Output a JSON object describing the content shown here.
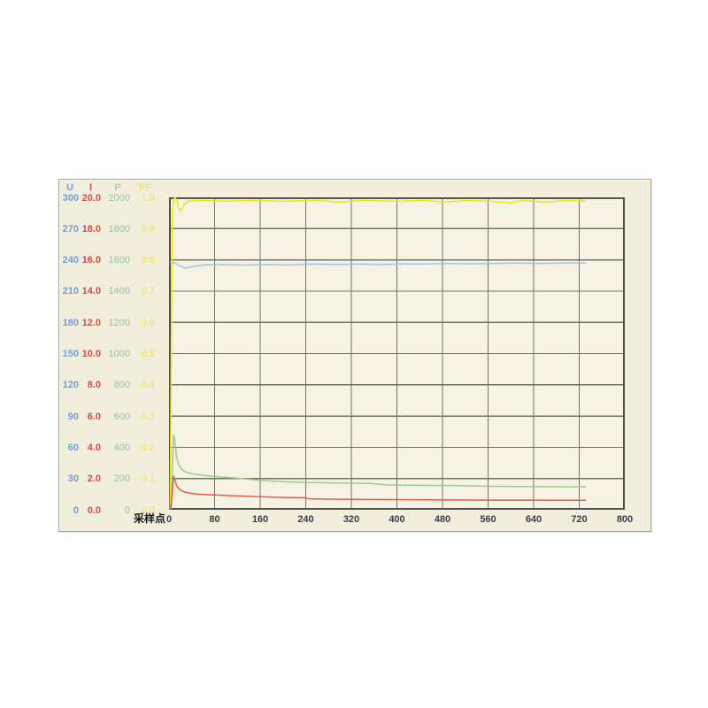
{
  "panel": {
    "name": "trend-chart-panel"
  },
  "colors": {
    "panel_bg": "#F1EEDE",
    "plot_bg": "#F6F3E4",
    "grid_line": "#73725F",
    "plot_border": "#53524A",
    "x_label_color": "#3B3B46",
    "u_color": "#6FA0D8",
    "i_color": "#D84B3F",
    "p_color": "#8FC897",
    "pf_color": "#EDE34A",
    "u_line": "#9CC5EB",
    "i_line": "#E25B50",
    "p_line": "#9CCB90",
    "pf_line": "#EDE70C"
  },
  "y_axes": {
    "columns": [
      {
        "id": "U",
        "header": "U",
        "color": "#6FA0D8",
        "bold": true,
        "ticks": [
          "300",
          "270",
          "240",
          "210",
          "180",
          "150",
          "120",
          "90",
          "60",
          "30",
          "0"
        ]
      },
      {
        "id": "I",
        "header": "I",
        "color": "#D84B3F",
        "bold": true,
        "ticks": [
          "20.0",
          "18.0",
          "16.0",
          "14.0",
          "12.0",
          "10.0",
          "8.0",
          "6.0",
          "4.0",
          "2.0",
          "0.0"
        ]
      },
      {
        "id": "P",
        "header": "P",
        "color": "#8FC897",
        "bold": false,
        "ticks": [
          "2000",
          "1800",
          "1600",
          "1400",
          "1200",
          "1000",
          "800",
          "600",
          "400",
          "200",
          "0"
        ]
      },
      {
        "id": "PF",
        "header": "PF",
        "color": "#EDE34A",
        "bold": false,
        "ticks": [
          "1.0",
          "0.9",
          "0.8",
          "0.7",
          "0.6",
          "0.5",
          "0.4",
          "0.3",
          "0.2",
          "0.1",
          "0.0"
        ]
      }
    ]
  },
  "x_axis": {
    "label": "采样点",
    "ticks": [
      "0",
      "80",
      "160",
      "240",
      "320",
      "400",
      "480",
      "560",
      "640",
      "720",
      "800"
    ]
  },
  "chart_data": {
    "type": "line",
    "title": "",
    "xlabel": "采样点",
    "x_range": [
      0,
      800
    ],
    "grid": true,
    "legend_position": "left-axis-headers",
    "axes": [
      {
        "name": "U",
        "range": [
          0,
          300
        ],
        "step": 30
      },
      {
        "name": "I",
        "range": [
          0,
          20
        ],
        "step": 2
      },
      {
        "name": "P",
        "range": [
          0,
          2000
        ],
        "step": 200
      },
      {
        "name": "PF",
        "range": [
          0,
          1.0
        ],
        "step": 0.1
      }
    ],
    "series": [
      {
        "name": "PF",
        "color": "#EDE70C",
        "y_range": [
          0,
          1
        ],
        "points": [
          [
            2,
            0
          ],
          [
            4,
            0.55
          ],
          [
            6,
            0.97
          ],
          [
            10,
            1.0
          ],
          [
            14,
            0.99
          ],
          [
            17,
            0.962
          ],
          [
            21,
            0.957
          ],
          [
            26,
            0.975
          ],
          [
            34,
            0.988
          ],
          [
            60,
            0.99
          ],
          [
            100,
            0.988
          ],
          [
            140,
            0.99
          ],
          [
            200,
            0.988
          ],
          [
            260,
            0.99
          ],
          [
            300,
            0.985
          ],
          [
            340,
            0.99
          ],
          [
            400,
            0.988
          ],
          [
            450,
            0.99
          ],
          [
            480,
            0.985
          ],
          [
            520,
            0.99
          ],
          [
            560,
            0.988
          ],
          [
            600,
            0.983
          ],
          [
            620,
            0.99
          ],
          [
            660,
            0.985
          ],
          [
            700,
            0.99
          ],
          [
            731,
            0.988
          ]
        ]
      },
      {
        "name": "U",
        "color": "#9CC5EB",
        "y_range": [
          0,
          300
        ],
        "points": [
          [
            2,
            238
          ],
          [
            10,
            237
          ],
          [
            18,
            234.5
          ],
          [
            28,
            232
          ],
          [
            40,
            233.5
          ],
          [
            60,
            235
          ],
          [
            90,
            235.5
          ],
          [
            130,
            235
          ],
          [
            170,
            235.5
          ],
          [
            210,
            235
          ],
          [
            250,
            236
          ],
          [
            290,
            235.5
          ],
          [
            330,
            236
          ],
          [
            370,
            235.5
          ],
          [
            410,
            236
          ],
          [
            450,
            236
          ],
          [
            490,
            236.5
          ],
          [
            530,
            236
          ],
          [
            570,
            236.5
          ],
          [
            610,
            237
          ],
          [
            650,
            236.5
          ],
          [
            690,
            237
          ],
          [
            731,
            237
          ]
        ]
      },
      {
        "name": "P",
        "color": "#9CCB90",
        "y_range": [
          0,
          2000
        ],
        "points": [
          [
            2,
            0
          ],
          [
            4,
            60
          ],
          [
            6,
            300
          ],
          [
            8,
            480
          ],
          [
            10,
            445
          ],
          [
            13,
            345
          ],
          [
            17,
            288
          ],
          [
            22,
            260
          ],
          [
            28,
            245
          ],
          [
            35,
            235
          ],
          [
            45,
            228
          ],
          [
            56,
            222
          ],
          [
            70,
            216
          ],
          [
            90,
            210
          ],
          [
            110,
            205
          ],
          [
            130,
            199
          ],
          [
            150,
            192
          ],
          [
            170,
            186
          ],
          [
            200,
            180
          ],
          [
            240,
            175
          ],
          [
            280,
            172
          ],
          [
            320,
            170
          ],
          [
            355,
            168
          ],
          [
            382,
            159
          ],
          [
            420,
            157
          ],
          [
            460,
            156
          ],
          [
            500,
            155
          ],
          [
            545,
            151
          ],
          [
            600,
            149
          ],
          [
            650,
            148
          ],
          [
            700,
            147
          ],
          [
            731,
            147
          ]
        ]
      },
      {
        "name": "I",
        "color": "#E25B50",
        "y_range": [
          0,
          20
        ],
        "points": [
          [
            2,
            0
          ],
          [
            4,
            0.3
          ],
          [
            6,
            1.3
          ],
          [
            8,
            2.15
          ],
          [
            10,
            1.95
          ],
          [
            13,
            1.55
          ],
          [
            17,
            1.36
          ],
          [
            22,
            1.22
          ],
          [
            28,
            1.13
          ],
          [
            35,
            1.07
          ],
          [
            45,
            1.02
          ],
          [
            60,
            0.98
          ],
          [
            80,
            0.95
          ],
          [
            110,
            0.9
          ],
          [
            140,
            0.86
          ],
          [
            170,
            0.82
          ],
          [
            200,
            0.79
          ],
          [
            240,
            0.77
          ],
          [
            244,
            0.7
          ],
          [
            280,
            0.68
          ],
          [
            320,
            0.67
          ],
          [
            360,
            0.66
          ],
          [
            400,
            0.65
          ],
          [
            450,
            0.64
          ],
          [
            500,
            0.63
          ],
          [
            560,
            0.62
          ],
          [
            620,
            0.62
          ],
          [
            680,
            0.61
          ],
          [
            731,
            0.61
          ]
        ]
      }
    ]
  }
}
